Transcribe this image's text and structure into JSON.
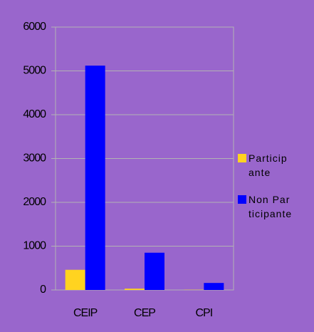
{
  "chart_data": {
    "type": "bar",
    "categories": [
      "CEIP",
      "CEP",
      "CPI"
    ],
    "series": [
      {
        "name": "Participante",
        "color": "#ffd320",
        "values": [
          460,
          30,
          5
        ]
      },
      {
        "name": "Non Participante",
        "color": "#0000ff",
        "values": [
          5120,
          850,
          160
        ]
      }
    ],
    "ylim": [
      0,
      6000
    ],
    "yticks": [
      0,
      1000,
      2000,
      3000,
      4000,
      5000,
      6000
    ],
    "grid": true,
    "legend": "right"
  }
}
